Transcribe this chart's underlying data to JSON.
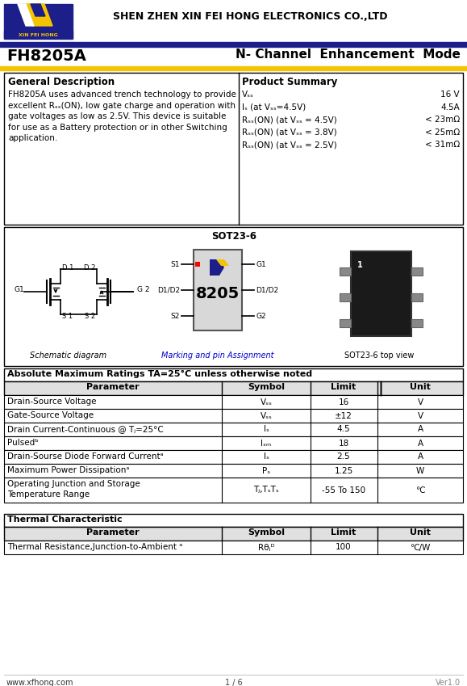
{
  "company": "SHEN ZHEN XIN FEI HONG ELECTRONICS CO.,LTD",
  "brand": "XIN FEI HONG",
  "part_number": "FH8205A",
  "mode": "N- Channel  Enhancement  Mode",
  "bg_color": "#ffffff",
  "header_bar_color": "#1c1f8a",
  "yellow_bar_color": "#f5c400",
  "general_desc_title": "General Description",
  "product_summary_title": "Product Summary",
  "desc_lines": [
    "FH8205A uses advanced trench technology to provide",
    "excellent Rₛₛ(ON), low gate charge and operation with",
    "gate voltages as low as 2.5V. This device is suitable",
    "for use as a Battery protection or in other Switching",
    "application."
  ],
  "ps_labels": [
    "Vₛₛ",
    "Iₛ (at Vₛₛ=4.5V)",
    "Rₛₛ(ON) (at Vₛₛ = 4.5V)",
    "Rₛₛ(ON) (at Vₛₛ = 3.8V)",
    "Rₛₛ(ON) (at Vₛₛ = 2.5V)"
  ],
  "ps_vals": [
    "16 V",
    "4.5A",
    "< 23mΩ",
    "< 25mΩ",
    "< 31mΩ"
  ],
  "package_title": "SOT23-6",
  "abs_max_title": "Absolute Maximum Ratings TA=25°C unless otherwise noted",
  "abs_max_headers": [
    "Parameter",
    "Symbol",
    "Limit",
    "Unit"
  ],
  "abs_max_rows": [
    [
      "Drain-Source Voltage",
      "Vₛₛ",
      "16",
      "V"
    ],
    [
      "Gate-Source Voltage",
      "Vₛₛ",
      "±12",
      "V"
    ],
    [
      "Drain Current-Continuous @ Tⱼ=25°C",
      "Iₛ",
      "4.5",
      "A"
    ],
    [
      "Pulsedᵇ",
      "Iₛₘ",
      "18",
      "A"
    ],
    [
      "Drain-Sourse Diode Forward Currentᵃ",
      "Iₛ",
      "2.5",
      "A"
    ],
    [
      "Maximum Power Dissipationᵃ",
      "Pₛ",
      "1.25",
      "W"
    ],
    [
      "Operating Junction and Storage\nTemperature Range",
      "Tⱼ,TₛTₛ",
      "-55 To 150",
      "℃"
    ]
  ],
  "thermal_title": "Thermal Characteristic",
  "thermal_headers": [
    "Parameter",
    "Symbol",
    "Limit",
    "Unit"
  ],
  "thermal_rows": [
    [
      "Thermal Resistance,Junction-to-Ambient ᵃ",
      "Rθⱼᴰ",
      "100",
      "℃/W"
    ]
  ],
  "footer_left": "www.xfhong.com",
  "footer_center": "1 / 6",
  "footer_right": "Ver1.0"
}
